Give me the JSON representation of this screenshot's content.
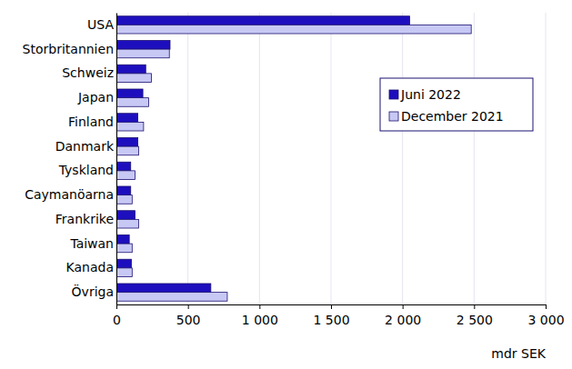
{
  "chart_data": {
    "type": "bar",
    "orientation": "horizontal",
    "categories": [
      "USA",
      "Storbritannien",
      "Schweiz",
      "Japan",
      "Finland",
      "Danmark",
      "Tyskland",
      "Caymanöarna",
      "Frankrike",
      "Taiwan",
      "Kanada",
      "Övriga"
    ],
    "series": [
      {
        "name": "Juni 2022",
        "color": "#1e0fbe",
        "values": [
          2050,
          375,
          205,
          185,
          150,
          150,
          100,
          100,
          130,
          90,
          105,
          660
        ]
      },
      {
        "name": "December 2021",
        "color": "#c8c8f5",
        "values": [
          2480,
          370,
          245,
          225,
          190,
          155,
          130,
          110,
          155,
          110,
          110,
          775
        ]
      }
    ],
    "xlim": [
      0,
      3000
    ],
    "xticks": [
      0,
      500,
      {
        "value": 1000,
        "label": "1 000"
      },
      {
        "value": 1500,
        "label": "1 500"
      },
      {
        "value": 2000,
        "label": "2 000"
      },
      {
        "value": 2500,
        "label": "2 500"
      },
      {
        "value": 3000,
        "label": "3 000"
      }
    ],
    "x_label": "mdr SEK",
    "grid": true,
    "legend": "upper right"
  }
}
